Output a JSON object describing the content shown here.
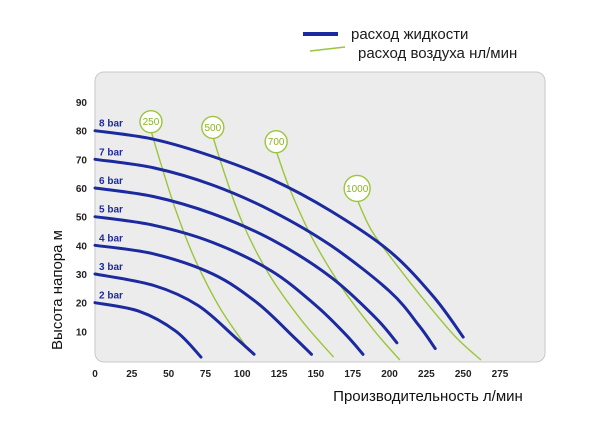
{
  "colors": {
    "liquid": "#1b2a9e",
    "air": "#9bc53d",
    "panel_bg": "#ececec",
    "panel_border": "#c8c8c8"
  },
  "legend": {
    "liquid_label": "расход жидкости",
    "air_label": "расход воздуха нл/мин"
  },
  "chart_data": {
    "type": "line",
    "xlabel": "Производительность  л/мин",
    "ylabel": "Высота напора  м",
    "xlim": [
      0,
      290
    ],
    "ylim": [
      0,
      98
    ],
    "x_ticks": [
      0,
      25,
      50,
      75,
      100,
      125,
      150,
      175,
      200,
      225,
      250,
      275
    ],
    "y_ticks": [
      10,
      20,
      30,
      40,
      50,
      60,
      70,
      80,
      90
    ],
    "grid": false,
    "legend_position": "top-right",
    "series": [
      {
        "name": "8 bar",
        "group": "liquid",
        "x": [
          0,
          40,
          80,
          120,
          160,
          200,
          230,
          250
        ],
        "y": [
          80,
          77,
          71,
          63,
          52,
          38,
          22,
          8
        ]
      },
      {
        "name": "7 bar",
        "group": "liquid",
        "x": [
          0,
          40,
          80,
          120,
          160,
          200,
          220,
          231
        ],
        "y": [
          70,
          67,
          61,
          52,
          40,
          24,
          12,
          4
        ]
      },
      {
        "name": "6 bar",
        "group": "liquid",
        "x": [
          0,
          40,
          80,
          120,
          160,
          190,
          205
        ],
        "y": [
          60,
          57,
          51,
          42,
          29,
          15,
          6
        ]
      },
      {
        "name": "5 bar",
        "group": "liquid",
        "x": [
          0,
          40,
          80,
          120,
          150,
          170,
          182
        ],
        "y": [
          50,
          47,
          41,
          31,
          19,
          9,
          2
        ]
      },
      {
        "name": "4 bar",
        "group": "liquid",
        "x": [
          0,
          40,
          80,
          110,
          135,
          147
        ],
        "y": [
          40,
          37,
          30,
          20,
          8,
          2
        ]
      },
      {
        "name": "3 bar",
        "group": "liquid",
        "x": [
          0,
          40,
          70,
          95,
          108
        ],
        "y": [
          30,
          26,
          19,
          8,
          2
        ]
      },
      {
        "name": "2 bar",
        "group": "liquid",
        "x": [
          0,
          30,
          55,
          72
        ],
        "y": [
          20,
          17,
          10,
          1
        ]
      },
      {
        "name": "250",
        "group": "air",
        "x": [
          38,
          45,
          55,
          68,
          85,
          105
        ],
        "y": [
          80,
          68,
          52,
          35,
          18,
          3
        ]
      },
      {
        "name": "500",
        "group": "air",
        "x": [
          80,
          88,
          100,
          118,
          140,
          162
        ],
        "y": [
          78,
          65,
          48,
          30,
          14,
          1
        ]
      },
      {
        "name": "700",
        "group": "air",
        "x": [
          123,
          132,
          148,
          168,
          190,
          207
        ],
        "y": [
          73,
          60,
          42,
          25,
          10,
          0
        ]
      },
      {
        "name": "1000",
        "group": "air",
        "x": [
          178,
          188,
          205,
          225,
          245,
          262
        ],
        "y": [
          56,
          45,
          33,
          20,
          8,
          0
        ]
      }
    ]
  }
}
